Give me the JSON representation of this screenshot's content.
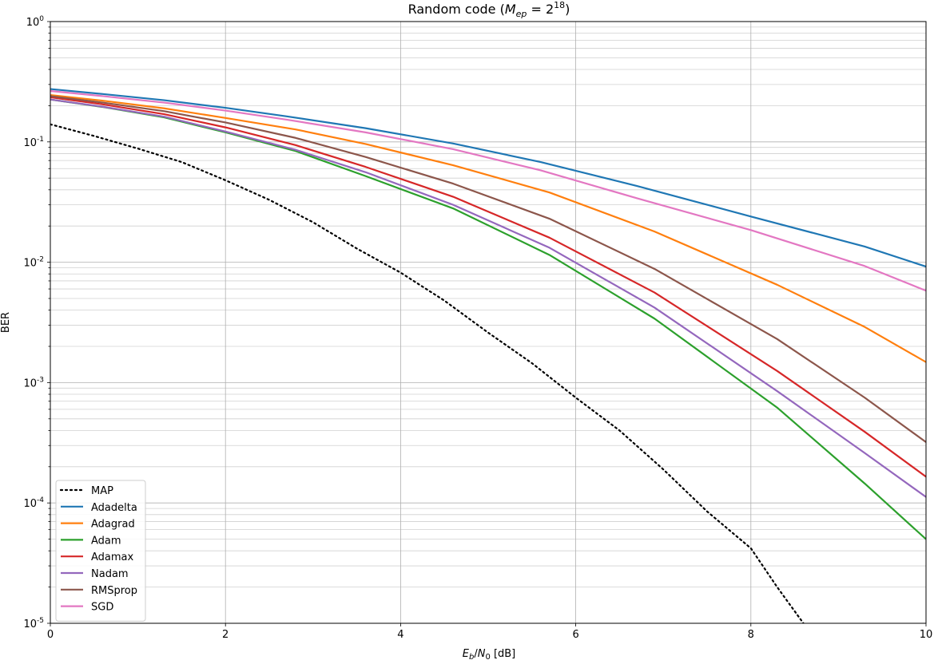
{
  "chart_data": {
    "type": "line",
    "title": {
      "prefix": "Random code (",
      "var": "M",
      "var_sub": "ep",
      "eq": " = 2",
      "exp": "18",
      "suffix": ")"
    },
    "xlabel": {
      "a": "E",
      "a_sub": "b",
      "slash": "/",
      "b": "N",
      "b_sub": "0",
      "unit": " [dB]"
    },
    "ylabel": "BER",
    "xlim": [
      0,
      10
    ],
    "ylim": [
      1e-05,
      1
    ],
    "yscale": "log",
    "grid": "both",
    "legend_position": "lower-left",
    "x_ticks": [
      "0",
      "2",
      "4",
      "6",
      "8",
      "10"
    ],
    "y_ticks": [
      {
        "base": "10",
        "exp": "0",
        "value": 1
      },
      {
        "base": "10",
        "exp": "-1",
        "value": 0.1
      },
      {
        "base": "10",
        "exp": "-2",
        "value": 0.01
      },
      {
        "base": "10",
        "exp": "-3",
        "value": 0.001
      },
      {
        "base": "10",
        "exp": "-4",
        "value": 0.0001
      },
      {
        "base": "10",
        "exp": "-5",
        "value": 1e-05
      }
    ],
    "series": [
      {
        "name": "MAP",
        "color": "#000000",
        "dashed": true,
        "x": [
          0,
          0.5,
          1,
          1.5,
          2,
          2.5,
          3,
          3.5,
          4,
          4.5,
          5,
          5.5,
          6,
          6.5,
          7,
          7.5,
          8,
          8.3,
          8.6
        ],
        "y": [
          0.14,
          0.112,
          0.088,
          0.068,
          0.048,
          0.033,
          0.0215,
          0.013,
          0.0082,
          0.0048,
          0.0026,
          0.00145,
          0.00075,
          0.0004,
          0.00019,
          8.5e-05,
          4.2e-05,
          2e-05,
          1e-05
        ]
      },
      {
        "name": "Adadelta",
        "color": "#1f77b4",
        "dashed": false,
        "x": [
          0,
          0.6,
          1.3,
          2,
          2.7,
          3.6,
          4.6,
          5.6,
          6.7,
          8,
          9.3,
          10
        ],
        "y": [
          0.275,
          0.25,
          0.222,
          0.192,
          0.163,
          0.13,
          0.097,
          0.068,
          0.043,
          0.024,
          0.0135,
          0.0092
        ]
      },
      {
        "name": "Adagrad",
        "color": "#ff7f0e",
        "dashed": false,
        "x": [
          0,
          0.6,
          1.3,
          2,
          2.8,
          3.6,
          4.6,
          5.7,
          6.9,
          8.3,
          9.3,
          10
        ],
        "y": [
          0.245,
          0.22,
          0.19,
          0.158,
          0.127,
          0.096,
          0.064,
          0.038,
          0.018,
          0.0065,
          0.0029,
          0.00148
        ]
      },
      {
        "name": "Adam",
        "color": "#2ca02c",
        "dashed": false,
        "x": [
          0,
          0.6,
          1.3,
          2,
          2.8,
          3.6,
          4.6,
          5.7,
          6.9,
          8.3,
          9.3,
          10
        ],
        "y": [
          0.225,
          0.195,
          0.16,
          0.12,
          0.084,
          0.052,
          0.028,
          0.0115,
          0.0034,
          0.00062,
          0.000145,
          5e-05
        ]
      },
      {
        "name": "Adamax",
        "color": "#d62728",
        "dashed": false,
        "x": [
          0,
          0.6,
          1.3,
          2,
          2.8,
          3.6,
          4.6,
          5.7,
          6.9,
          8.3,
          9.3,
          10
        ],
        "y": [
          0.235,
          0.205,
          0.17,
          0.132,
          0.094,
          0.062,
          0.035,
          0.016,
          0.0056,
          0.00125,
          0.00039,
          0.000165
        ]
      },
      {
        "name": "Nadam",
        "color": "#9467bd",
        "dashed": false,
        "x": [
          0,
          0.6,
          1.3,
          2,
          2.8,
          3.6,
          4.6,
          5.7,
          6.9,
          8.3,
          9.3,
          10
        ],
        "y": [
          0.225,
          0.196,
          0.162,
          0.122,
          0.086,
          0.056,
          0.03,
          0.0132,
          0.0042,
          0.00085,
          0.00026,
          0.000112
        ]
      },
      {
        "name": "RMSprop",
        "color": "#8c564b",
        "dashed": false,
        "x": [
          0,
          0.6,
          1.3,
          2,
          2.8,
          3.6,
          4.6,
          5.7,
          6.9,
          8.3,
          9.3,
          10
        ],
        "y": [
          0.24,
          0.212,
          0.18,
          0.145,
          0.108,
          0.075,
          0.045,
          0.023,
          0.0088,
          0.0023,
          0.00075,
          0.00032
        ]
      },
      {
        "name": "SGD",
        "color": "#e377c2",
        "dashed": false,
        "x": [
          0,
          0.6,
          1.3,
          2,
          2.7,
          3.6,
          4.6,
          5.6,
          6.7,
          8,
          9.3,
          10
        ],
        "y": [
          0.265,
          0.24,
          0.212,
          0.182,
          0.153,
          0.12,
          0.087,
          0.058,
          0.034,
          0.0185,
          0.0093,
          0.0058
        ]
      }
    ]
  }
}
